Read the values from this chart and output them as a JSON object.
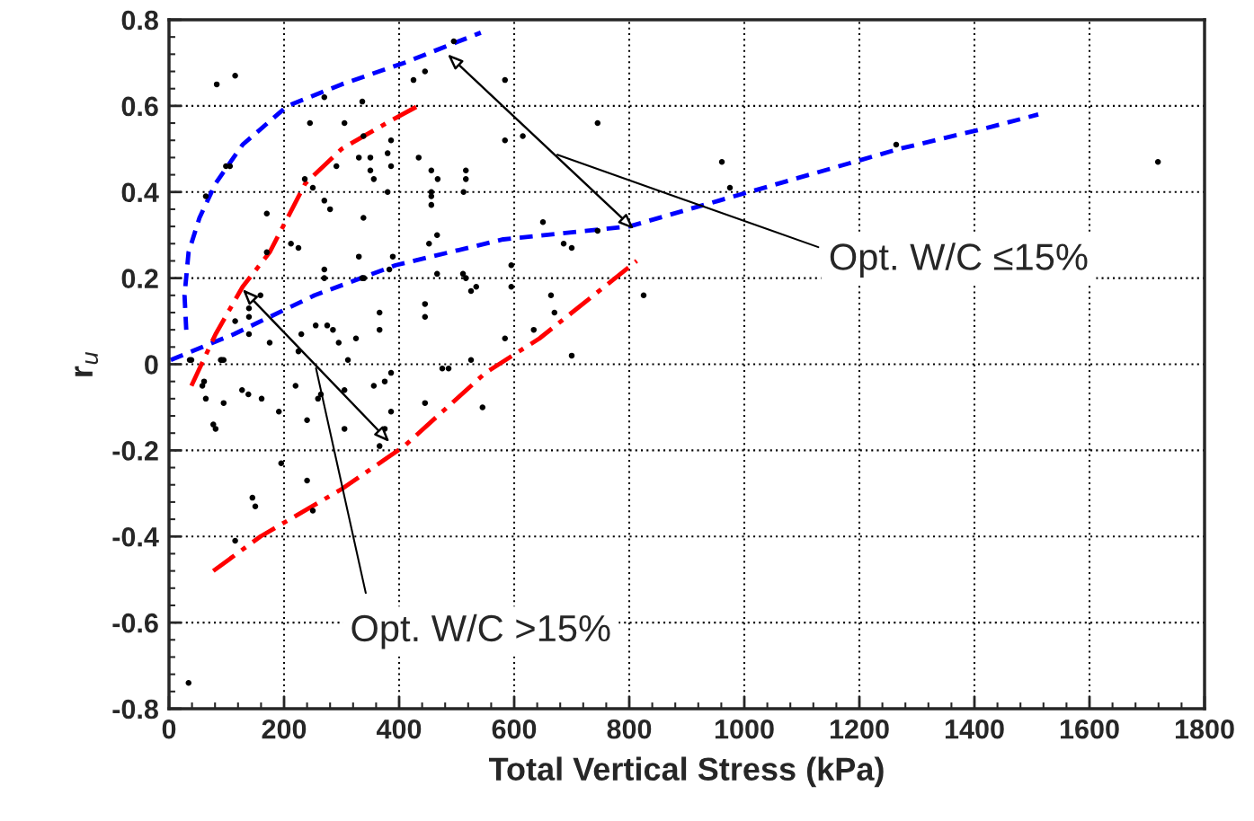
{
  "chart_data": {
    "type": "scatter",
    "xlabel": "Total Vertical Stress (kPa)",
    "ylabel": "r$_{u}$",
    "xlim": [
      0,
      1800
    ],
    "ylim": [
      -0.8,
      0.8
    ],
    "xticks": [
      0,
      200,
      400,
      600,
      800,
      1000,
      1200,
      1400,
      1600,
      1800
    ],
    "yticks": [
      {
        "value": -0.8,
        "label": "-0.8"
      },
      {
        "value": -0.6,
        "label": "-0.6"
      },
      {
        "value": -0.4,
        "label": "-0.4"
      },
      {
        "value": -0.2,
        "label": "-0.2"
      },
      {
        "value": 0,
        "label": "0"
      },
      {
        "value": 0.2,
        "label": "0.2"
      },
      {
        "value": 0.4,
        "label": "0.4"
      },
      {
        "value": 0.6,
        "label": "0.6"
      },
      {
        "value": 0.8,
        "label": "0.8"
      }
    ],
    "grid": true,
    "legend": false,
    "series": [
      {
        "color": "#000000",
        "marker": "circle",
        "x": [
          36,
          83,
          115,
          90,
          95,
          106,
          99,
          64,
          170,
          170,
          212,
          225,
          270,
          336,
          245,
          305,
          338,
          386,
          330,
          350,
          380,
          434,
          291,
          386,
          350,
          356,
          456,
          467,
          236,
          250,
          270,
          280,
          380,
          456,
          456,
          456,
          338,
          452,
          466,
          330,
          389,
          270,
          270,
          336,
          339,
          383,
          466,
          159,
          115,
          139,
          139,
          139,
          175,
          230,
          255,
          275,
          285,
          295,
          325,
          366,
          366,
          445,
          445,
          225,
          311,
          39,
          92,
          58,
          61,
          64,
          77,
          81,
          95,
          127,
          138,
          161,
          191,
          195,
          220,
          240,
          240,
          250,
          259,
          264,
          145,
          150,
          115,
          305,
          305,
          356,
          375,
          386,
          386,
          375,
          366,
          445,
          34,
          495,
          425,
          445,
          584,
          745,
          584,
          615,
          516,
          516,
          512,
          961,
          975,
          650,
          745,
          686,
          700,
          511,
          516,
          534,
          525,
          595,
          595,
          664,
          670,
          825,
          634,
          584,
          525,
          700,
          475,
          486,
          545,
          1264,
          1719
        ],
        "values": [
          0.01,
          0.65,
          0.67,
          0.01,
          0.01,
          0.46,
          0.46,
          0.39,
          0.35,
          0.26,
          0.28,
          0.27,
          0.62,
          0.61,
          0.56,
          0.56,
          0.53,
          0.52,
          0.48,
          0.48,
          0.49,
          0.48,
          0.46,
          0.46,
          0.45,
          0.43,
          0.45,
          0.43,
          0.43,
          0.41,
          0.38,
          0.36,
          0.4,
          0.4,
          0.39,
          0.37,
          0.34,
          0.28,
          0.3,
          0.25,
          0.25,
          0.22,
          0.2,
          0.2,
          0.2,
          0.22,
          0.21,
          0.16,
          0.1,
          0.13,
          0.11,
          0.07,
          0.05,
          0.07,
          0.09,
          0.09,
          0.08,
          0.05,
          0.06,
          0.12,
          0.08,
          0.14,
          0.11,
          0.03,
          0.01,
          0.01,
          0.01,
          -0.05,
          -0.04,
          -0.08,
          -0.14,
          -0.15,
          -0.09,
          -0.06,
          -0.07,
          -0.08,
          -0.11,
          -0.23,
          -0.05,
          -0.13,
          -0.27,
          -0.34,
          -0.08,
          -0.07,
          -0.31,
          -0.33,
          -0.41,
          -0.06,
          -0.15,
          -0.05,
          -0.04,
          -0.02,
          -0.11,
          -0.15,
          -0.19,
          -0.09,
          -0.74,
          0.75,
          0.66,
          0.68,
          0.66,
          0.56,
          0.52,
          0.53,
          0.45,
          0.43,
          0.4,
          0.47,
          0.41,
          0.33,
          0.31,
          0.28,
          0.27,
          0.21,
          0.2,
          0.18,
          0.17,
          0.23,
          0.18,
          0.16,
          0.12,
          0.16,
          0.08,
          0.06,
          0.01,
          0.02,
          -0.01,
          -0.01,
          -0.1,
          0.51,
          0.47
        ]
      },
      {
        "type": "line",
        "color": "#0000ff",
        "line_style": "dashed",
        "x": [
          30,
          27,
          34,
          53,
          81,
          128,
          206,
          300,
          409,
          542
        ],
        "values": [
          0.08,
          0.16,
          0.26,
          0.34,
          0.42,
          0.51,
          0.6,
          0.65,
          0.7,
          0.77
        ]
      },
      {
        "type": "line",
        "color": "#0000ff",
        "line_style": "dashed",
        "x": [
          3,
          113,
          253,
          394,
          581,
          800,
          956,
          1113,
          1269,
          1425,
          1511
        ],
        "values": [
          0.01,
          0.07,
          0.16,
          0.23,
          0.29,
          0.32,
          0.38,
          0.44,
          0.5,
          0.55,
          0.58
        ]
      },
      {
        "type": "line",
        "color": "#ff0000",
        "line_style": "dashdot",
        "x": [
          39,
          81,
          128,
          175,
          237,
          300,
          378,
          433
        ],
        "values": [
          -0.05,
          0.07,
          0.18,
          0.26,
          0.42,
          0.5,
          0.56,
          0.6
        ]
      },
      {
        "type": "line",
        "color": "#ff0000",
        "line_style": "dashdot",
        "x": [
          77,
          159,
          300,
          409,
          550,
          644,
          813
        ],
        "values": [
          -0.48,
          -0.4,
          -0.29,
          -0.19,
          -0.02,
          0.06,
          0.24
        ]
      }
    ],
    "annotations": [
      "Opt. W/C ≤15%",
      "Opt. W/C >15%"
    ]
  }
}
